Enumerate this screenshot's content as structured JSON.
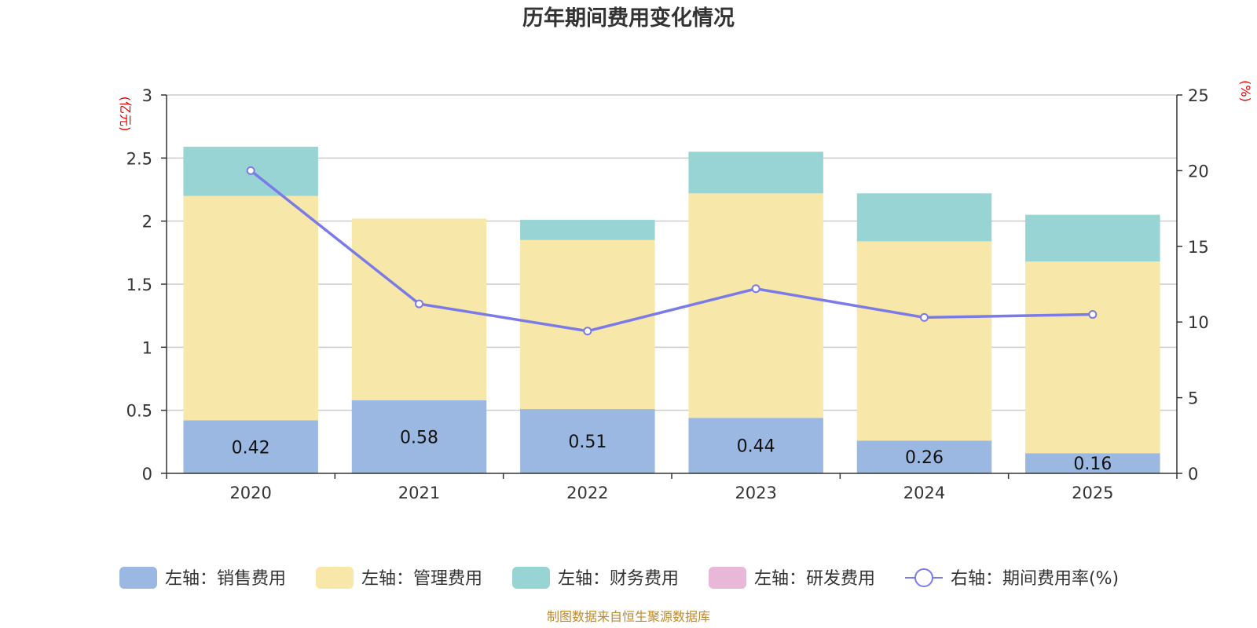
{
  "chart_data": {
    "type": "bar",
    "title": "历年期间费用变化情况",
    "categories": [
      "2020",
      "2021",
      "2022",
      "2023",
      "2024",
      "2025"
    ],
    "left_axis": {
      "unit": "(亿元)",
      "ylim": [
        0,
        3
      ],
      "ticks": [
        "0",
        "0.5",
        "1",
        "1.5",
        "2",
        "2.5",
        "3"
      ]
    },
    "right_axis": {
      "unit": "(%)",
      "ylim": [
        0,
        25
      ],
      "ticks": [
        "0",
        "5",
        "10",
        "15",
        "20",
        "25"
      ]
    },
    "series": [
      {
        "name": "左轴：销售费用",
        "axis": "left",
        "stacked": true,
        "color": "#9bb8e2",
        "values": [
          0.42,
          0.58,
          0.51,
          0.44,
          0.26,
          0.16
        ],
        "labels": [
          "0.42",
          "0.58",
          "0.51",
          "0.44",
          "0.26",
          "0.16"
        ]
      },
      {
        "name": "左轴：管理费用",
        "axis": "left",
        "stacked": true,
        "color": "#f7e7a8",
        "values": [
          1.78,
          1.44,
          1.34,
          1.78,
          1.58,
          1.52
        ]
      },
      {
        "name": "左轴：财务费用",
        "axis": "left",
        "stacked": true,
        "color": "#98d4d4",
        "values": [
          0.39,
          0.0,
          0.16,
          0.33,
          0.38,
          0.37
        ]
      },
      {
        "name": "左轴：研发费用",
        "axis": "left",
        "stacked": true,
        "color": "#e9b8d9",
        "values": [
          0,
          0,
          0,
          0,
          0,
          0
        ]
      },
      {
        "name": "右轴：期间费用率(%)",
        "axis": "right",
        "type": "line",
        "color": "#7b7be8",
        "values": [
          20.0,
          11.2,
          9.4,
          12.2,
          10.3,
          10.5
        ]
      }
    ],
    "legend_position": "bottom",
    "grid": true
  },
  "footer": {
    "source": "制图数据来自恒生聚源数据库"
  }
}
